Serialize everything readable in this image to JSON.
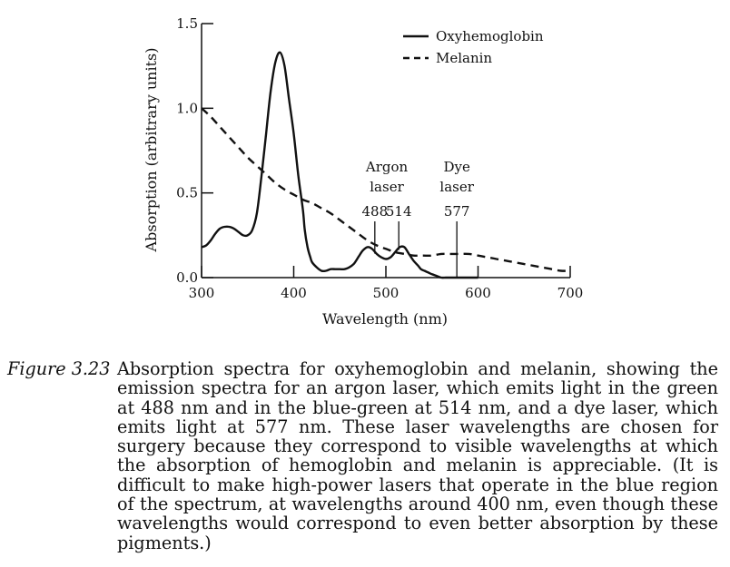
{
  "chart_data": {
    "type": "line",
    "xlabel": "Wavelength (nm)",
    "ylabel": "Absorption (arbitrary units)",
    "xlim": [
      300,
      700
    ],
    "ylim": [
      0,
      1.5
    ],
    "x_ticks": [
      300,
      400,
      500,
      600,
      700
    ],
    "x_tick_labels": [
      "300",
      "400",
      "500",
      "600",
      "700"
    ],
    "y_ticks": [
      0,
      0.5,
      1.0,
      1.5
    ],
    "y_tick_labels": [
      "0.0",
      "0.5",
      "1.0",
      "1.5"
    ],
    "grid": false,
    "legend_position": "top-right",
    "series": [
      {
        "name": "Oxyhemoglobin",
        "style": "solid",
        "x": [
          300,
          305,
          310,
          315,
          320,
          325,
          330,
          335,
          340,
          345,
          350,
          355,
          360,
          365,
          370,
          375,
          380,
          385,
          390,
          395,
          400,
          405,
          410,
          412,
          415,
          418,
          420,
          425,
          430,
          435,
          440,
          445,
          450,
          455,
          460,
          465,
          470,
          475,
          480,
          485,
          490,
          495,
          500,
          505,
          510,
          515,
          520,
          525,
          530,
          535,
          538,
          542,
          546,
          550,
          555,
          560,
          565,
          570,
          573,
          576,
          580,
          584,
          588,
          592,
          596,
          600
        ],
        "y": [
          0.18,
          0.19,
          0.22,
          0.26,
          0.29,
          0.3,
          0.3,
          0.29,
          0.27,
          0.25,
          0.25,
          0.28,
          0.38,
          0.6,
          0.85,
          1.1,
          1.27,
          1.33,
          1.25,
          1.05,
          0.85,
          0.6,
          0.4,
          0.28,
          0.18,
          0.12,
          0.09,
          0.06,
          0.04,
          0.04,
          0.05,
          0.05,
          0.05,
          0.05,
          0.06,
          0.08,
          0.12,
          0.16,
          0.18,
          0.17,
          0.14,
          0.12,
          0.11,
          0.12,
          0.15,
          0.18,
          0.18,
          0.14,
          0.1,
          0.07,
          0.05,
          0.04,
          0.03,
          0.02,
          0.01,
          0.0,
          0.0,
          0.0,
          0.0,
          0.0,
          0.0,
          0.0,
          0.0,
          0.0,
          0.0,
          0.0
        ]
      },
      {
        "name": "Melanin",
        "style": "dashed",
        "x": [
          300,
          310,
          320,
          330,
          340,
          350,
          360,
          370,
          380,
          390,
          400,
          410,
          420,
          430,
          440,
          450,
          460,
          470,
          480,
          490,
          500,
          510,
          520,
          530,
          540,
          550,
          560,
          570,
          580,
          590,
          600,
          610,
          620,
          630,
          640,
          650,
          660,
          670,
          680,
          690,
          700
        ],
        "y": [
          1.0,
          0.95,
          0.89,
          0.83,
          0.77,
          0.71,
          0.66,
          0.61,
          0.56,
          0.52,
          0.49,
          0.46,
          0.44,
          0.41,
          0.38,
          0.34,
          0.3,
          0.26,
          0.22,
          0.19,
          0.17,
          0.15,
          0.14,
          0.13,
          0.13,
          0.13,
          0.14,
          0.14,
          0.14,
          0.14,
          0.13,
          0.12,
          0.11,
          0.1,
          0.09,
          0.08,
          0.07,
          0.06,
          0.05,
          0.04,
          0.04
        ]
      }
    ],
    "laser_lines": [
      {
        "wavelength": 488,
        "label": "488",
        "group": "argon"
      },
      {
        "wavelength": 514,
        "label": "514",
        "group": "argon"
      },
      {
        "wavelength": 577,
        "label": "577",
        "group": "dye"
      }
    ],
    "annotations": [
      {
        "group": "argon",
        "lines": [
          "Argon",
          "laser"
        ]
      },
      {
        "group": "dye",
        "lines": [
          "Dye",
          "laser"
        ]
      }
    ]
  },
  "caption": {
    "label": "Figure 3.23",
    "text": "Absorption spectra for oxyhemoglobin and melanin, showing the emission spectra for an argon laser, which emits light in the green at 488 nm and in the blue-green at 514 nm, and a dye laser, which emits light at 577 nm. These laser wavelengths are chosen for surgery because they correspond to visible wavelengths at which the absorption of hemoglobin and melanin is appreciable. (It is difficult to make high-power lasers that operate in the blue region of the spectrum, at wavelengths around 400 nm, even though these wavelengths would correspond to even better absorption by these pigments.)"
  }
}
